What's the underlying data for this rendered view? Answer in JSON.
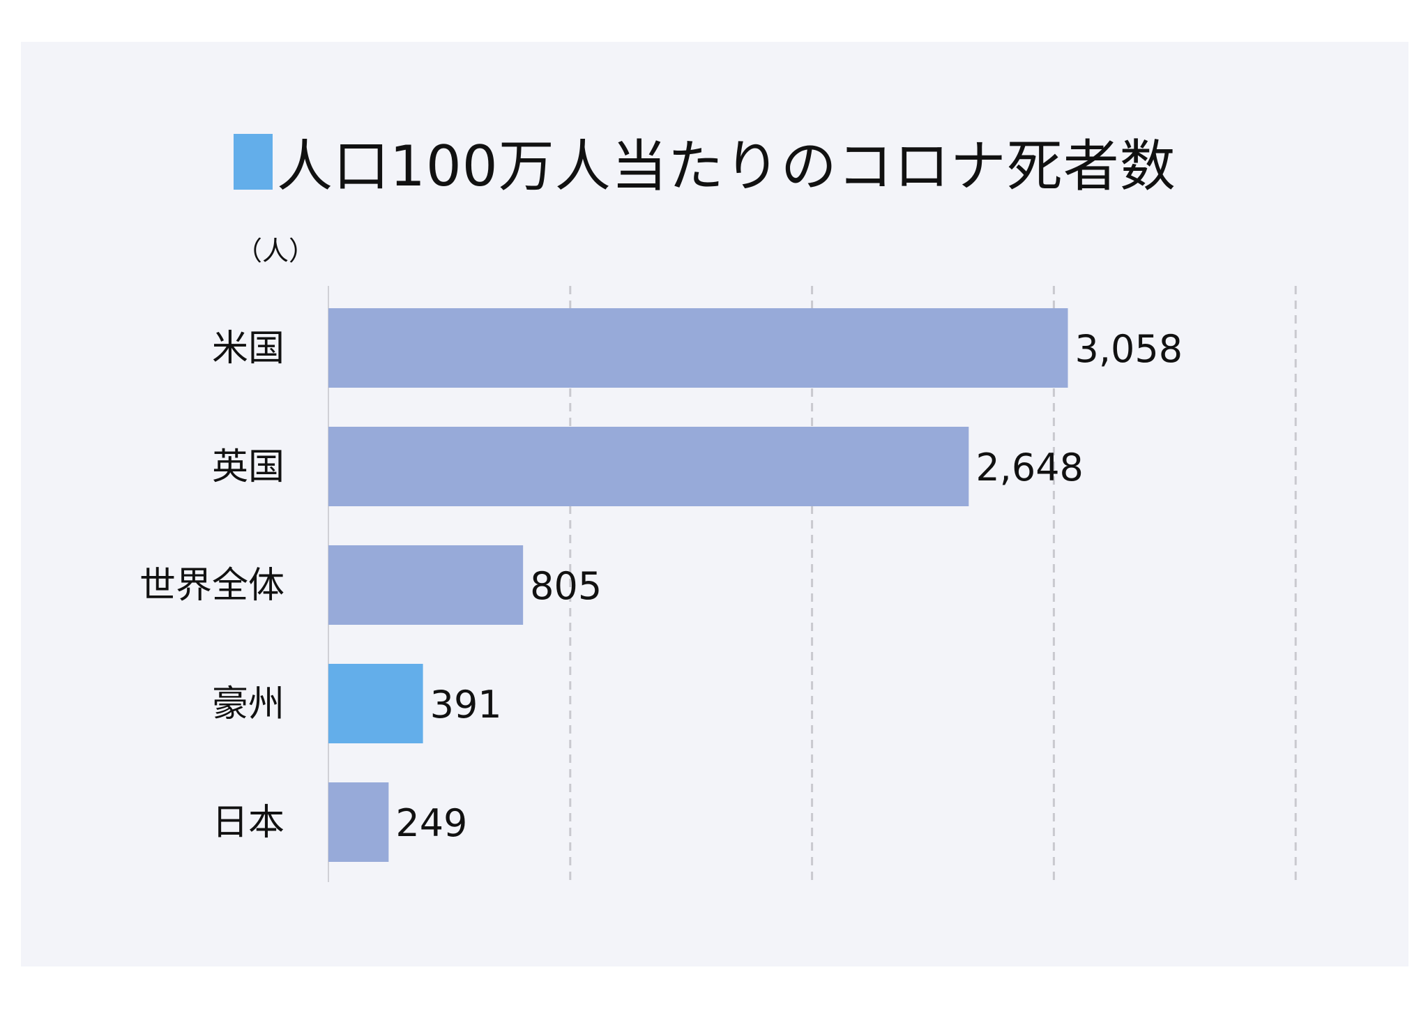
{
  "title": "人口100万人当たりのコロナ死者数",
  "title_marker_color": "#63aeea",
  "background_color": "#f3f4f9",
  "chart_data": {
    "type": "bar",
    "orientation": "horizontal",
    "unit_label": "（人）",
    "categories": [
      "米国",
      "英国",
      "世界全体",
      "豪州",
      "日本"
    ],
    "values": [
      3058,
      2648,
      805,
      391,
      249
    ],
    "value_labels": [
      "3,058",
      "2,648",
      "805",
      "391",
      "249"
    ],
    "highlight_category": "豪州",
    "colors": {
      "default": "#97aad9",
      "highlight": "#63aeea",
      "grid": "#c9c9cf",
      "axis": "#d0d0d6"
    },
    "xlim": [
      0,
      4000
    ],
    "grid_values": [
      1000,
      2000,
      3000,
      4000
    ],
    "grid": true,
    "grid_style": "dashed",
    "legend": "none"
  }
}
